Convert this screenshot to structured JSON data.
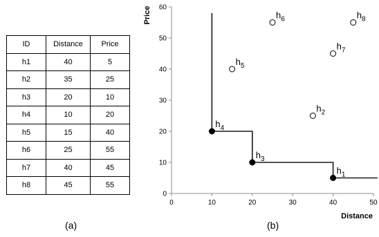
{
  "table": {
    "headers": [
      "ID",
      "Distance",
      "Price"
    ],
    "rows": [
      [
        "h1",
        "40",
        "5"
      ],
      [
        "h2",
        "35",
        "25"
      ],
      [
        "h3",
        "20",
        "10"
      ],
      [
        "h4",
        "10",
        "20"
      ],
      [
        "h5",
        "15",
        "40"
      ],
      [
        "h6",
        "25",
        "55"
      ],
      [
        "h7",
        "40",
        "45"
      ],
      [
        "h8",
        "45",
        "55"
      ]
    ]
  },
  "captions": {
    "a": "(a)",
    "b": "(b)"
  },
  "chart_data": {
    "type": "scatter",
    "xlabel": "Distance",
    "ylabel": "Price",
    "xlim": [
      0,
      50
    ],
    "ylim": [
      0,
      60
    ],
    "xticks": [
      0,
      10,
      20,
      30,
      40,
      50
    ],
    "yticks": [
      0,
      10,
      20,
      30,
      40,
      50,
      60
    ],
    "grid": false,
    "points": [
      {
        "label": "h",
        "sub": "1",
        "x": 40,
        "y": 5,
        "filled": true
      },
      {
        "label": "h",
        "sub": "2",
        "x": 35,
        "y": 25,
        "filled": false
      },
      {
        "label": "h",
        "sub": "3",
        "x": 20,
        "y": 10,
        "filled": true
      },
      {
        "label": "h",
        "sub": "4",
        "x": 10,
        "y": 20,
        "filled": true
      },
      {
        "label": "h",
        "sub": "5",
        "x": 15,
        "y": 40,
        "filled": false
      },
      {
        "label": "h",
        "sub": "6",
        "x": 25,
        "y": 55,
        "filled": false
      },
      {
        "label": "h",
        "sub": "7",
        "x": 40,
        "y": 45,
        "filled": false
      },
      {
        "label": "h",
        "sub": "8",
        "x": 45,
        "y": 55,
        "filled": false
      }
    ],
    "skyline": [
      [
        10,
        58
      ],
      [
        10,
        20
      ],
      [
        20,
        20
      ],
      [
        20,
        10
      ],
      [
        40,
        10
      ],
      [
        40,
        5
      ],
      [
        51,
        5
      ]
    ]
  }
}
